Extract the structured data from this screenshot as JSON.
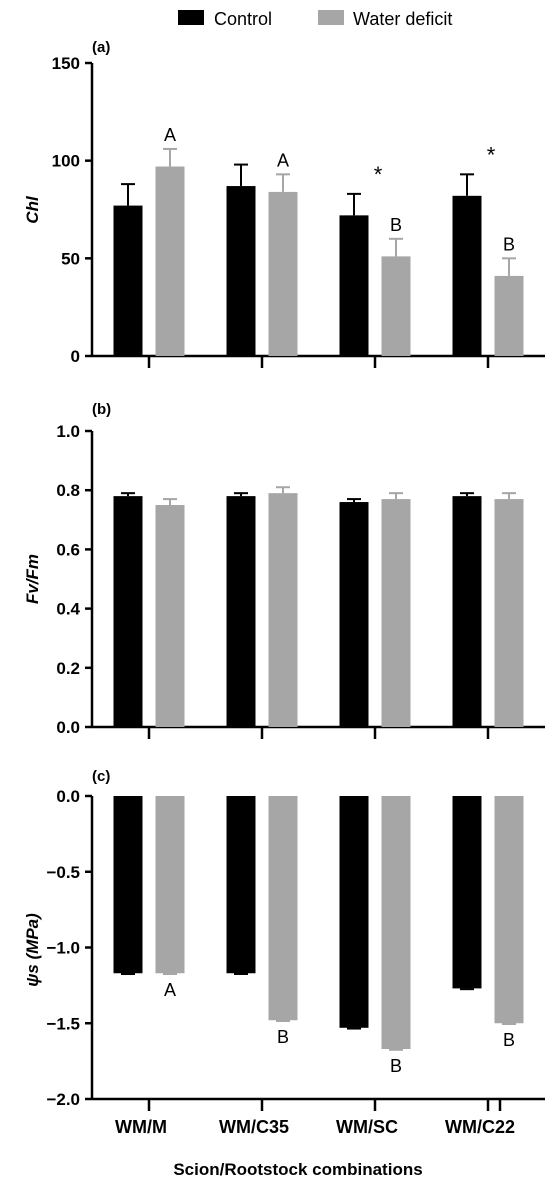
{
  "legend": [
    {
      "label": "Control",
      "color": "#000000"
    },
    {
      "label": "Water deficit",
      "color": "#a6a6a6"
    }
  ],
  "x_title": "Scion/Rootstock combinations",
  "categories": [
    "WM/M",
    "WM/C35",
    "WM/SC",
    "WM/C22"
  ],
  "chart_data": [
    {
      "type": "bar",
      "panel_label": "(a)",
      "ylabel": "Chl",
      "ylim": [
        0,
        150
      ],
      "yticks": [
        0,
        50,
        100,
        150
      ],
      "ytick_labels": [
        "0",
        "50",
        "100",
        "150"
      ],
      "series": [
        {
          "name": "Control",
          "values": [
            77,
            87,
            72,
            82
          ],
          "errors": [
            11,
            11,
            11,
            11
          ]
        },
        {
          "name": "Water deficit",
          "values": [
            97,
            84,
            51,
            41
          ],
          "errors": [
            9,
            9,
            9,
            9
          ]
        }
      ],
      "letters": [
        "A",
        "A",
        "B",
        "B"
      ],
      "stars": [
        "",
        "",
        "*",
        "*"
      ]
    },
    {
      "type": "bar",
      "panel_label": "(b)",
      "ylabel": "Fv/Fm",
      "ylim": [
        0,
        1.0
      ],
      "yticks": [
        0,
        0.2,
        0.4,
        0.6,
        0.8,
        1.0
      ],
      "ytick_labels": [
        "0.0",
        "0.2",
        "0.4",
        "0.6",
        "0.8",
        "1.0"
      ],
      "series": [
        {
          "name": "Control",
          "values": [
            0.78,
            0.78,
            0.76,
            0.78
          ],
          "errors": [
            0.01,
            0.01,
            0.01,
            0.01
          ]
        },
        {
          "name": "Water deficit",
          "values": [
            0.75,
            0.79,
            0.77,
            0.77
          ],
          "errors": [
            0.02,
            0.02,
            0.02,
            0.02
          ]
        }
      ],
      "letters": [
        "",
        "",
        "",
        ""
      ],
      "stars": [
        "",
        "",
        "",
        ""
      ]
    },
    {
      "type": "bar",
      "panel_label": "(c)",
      "ylabel": "ψs (MPa)",
      "ylim": [
        -2.0,
        0
      ],
      "yticks": [
        -2.0,
        -1.5,
        -1.0,
        -0.5,
        0.0
      ],
      "ytick_labels": [
        "−2.0",
        "−1.5",
        "−1.0",
        "−0.5",
        "0.0"
      ],
      "series": [
        {
          "name": "Control",
          "values": [
            -1.17,
            -1.17,
            -1.53,
            -1.27
          ],
          "errors": [
            0.005,
            0.005,
            0.005,
            0.005
          ]
        },
        {
          "name": "Water deficit",
          "values": [
            -1.17,
            -1.48,
            -1.67,
            -1.5
          ],
          "errors": [
            0.005,
            0.005,
            0.005,
            0.005
          ]
        }
      ],
      "letters": [
        "A",
        "B",
        "B",
        "B"
      ],
      "stars": [
        "",
        "",
        "",
        ""
      ]
    }
  ]
}
